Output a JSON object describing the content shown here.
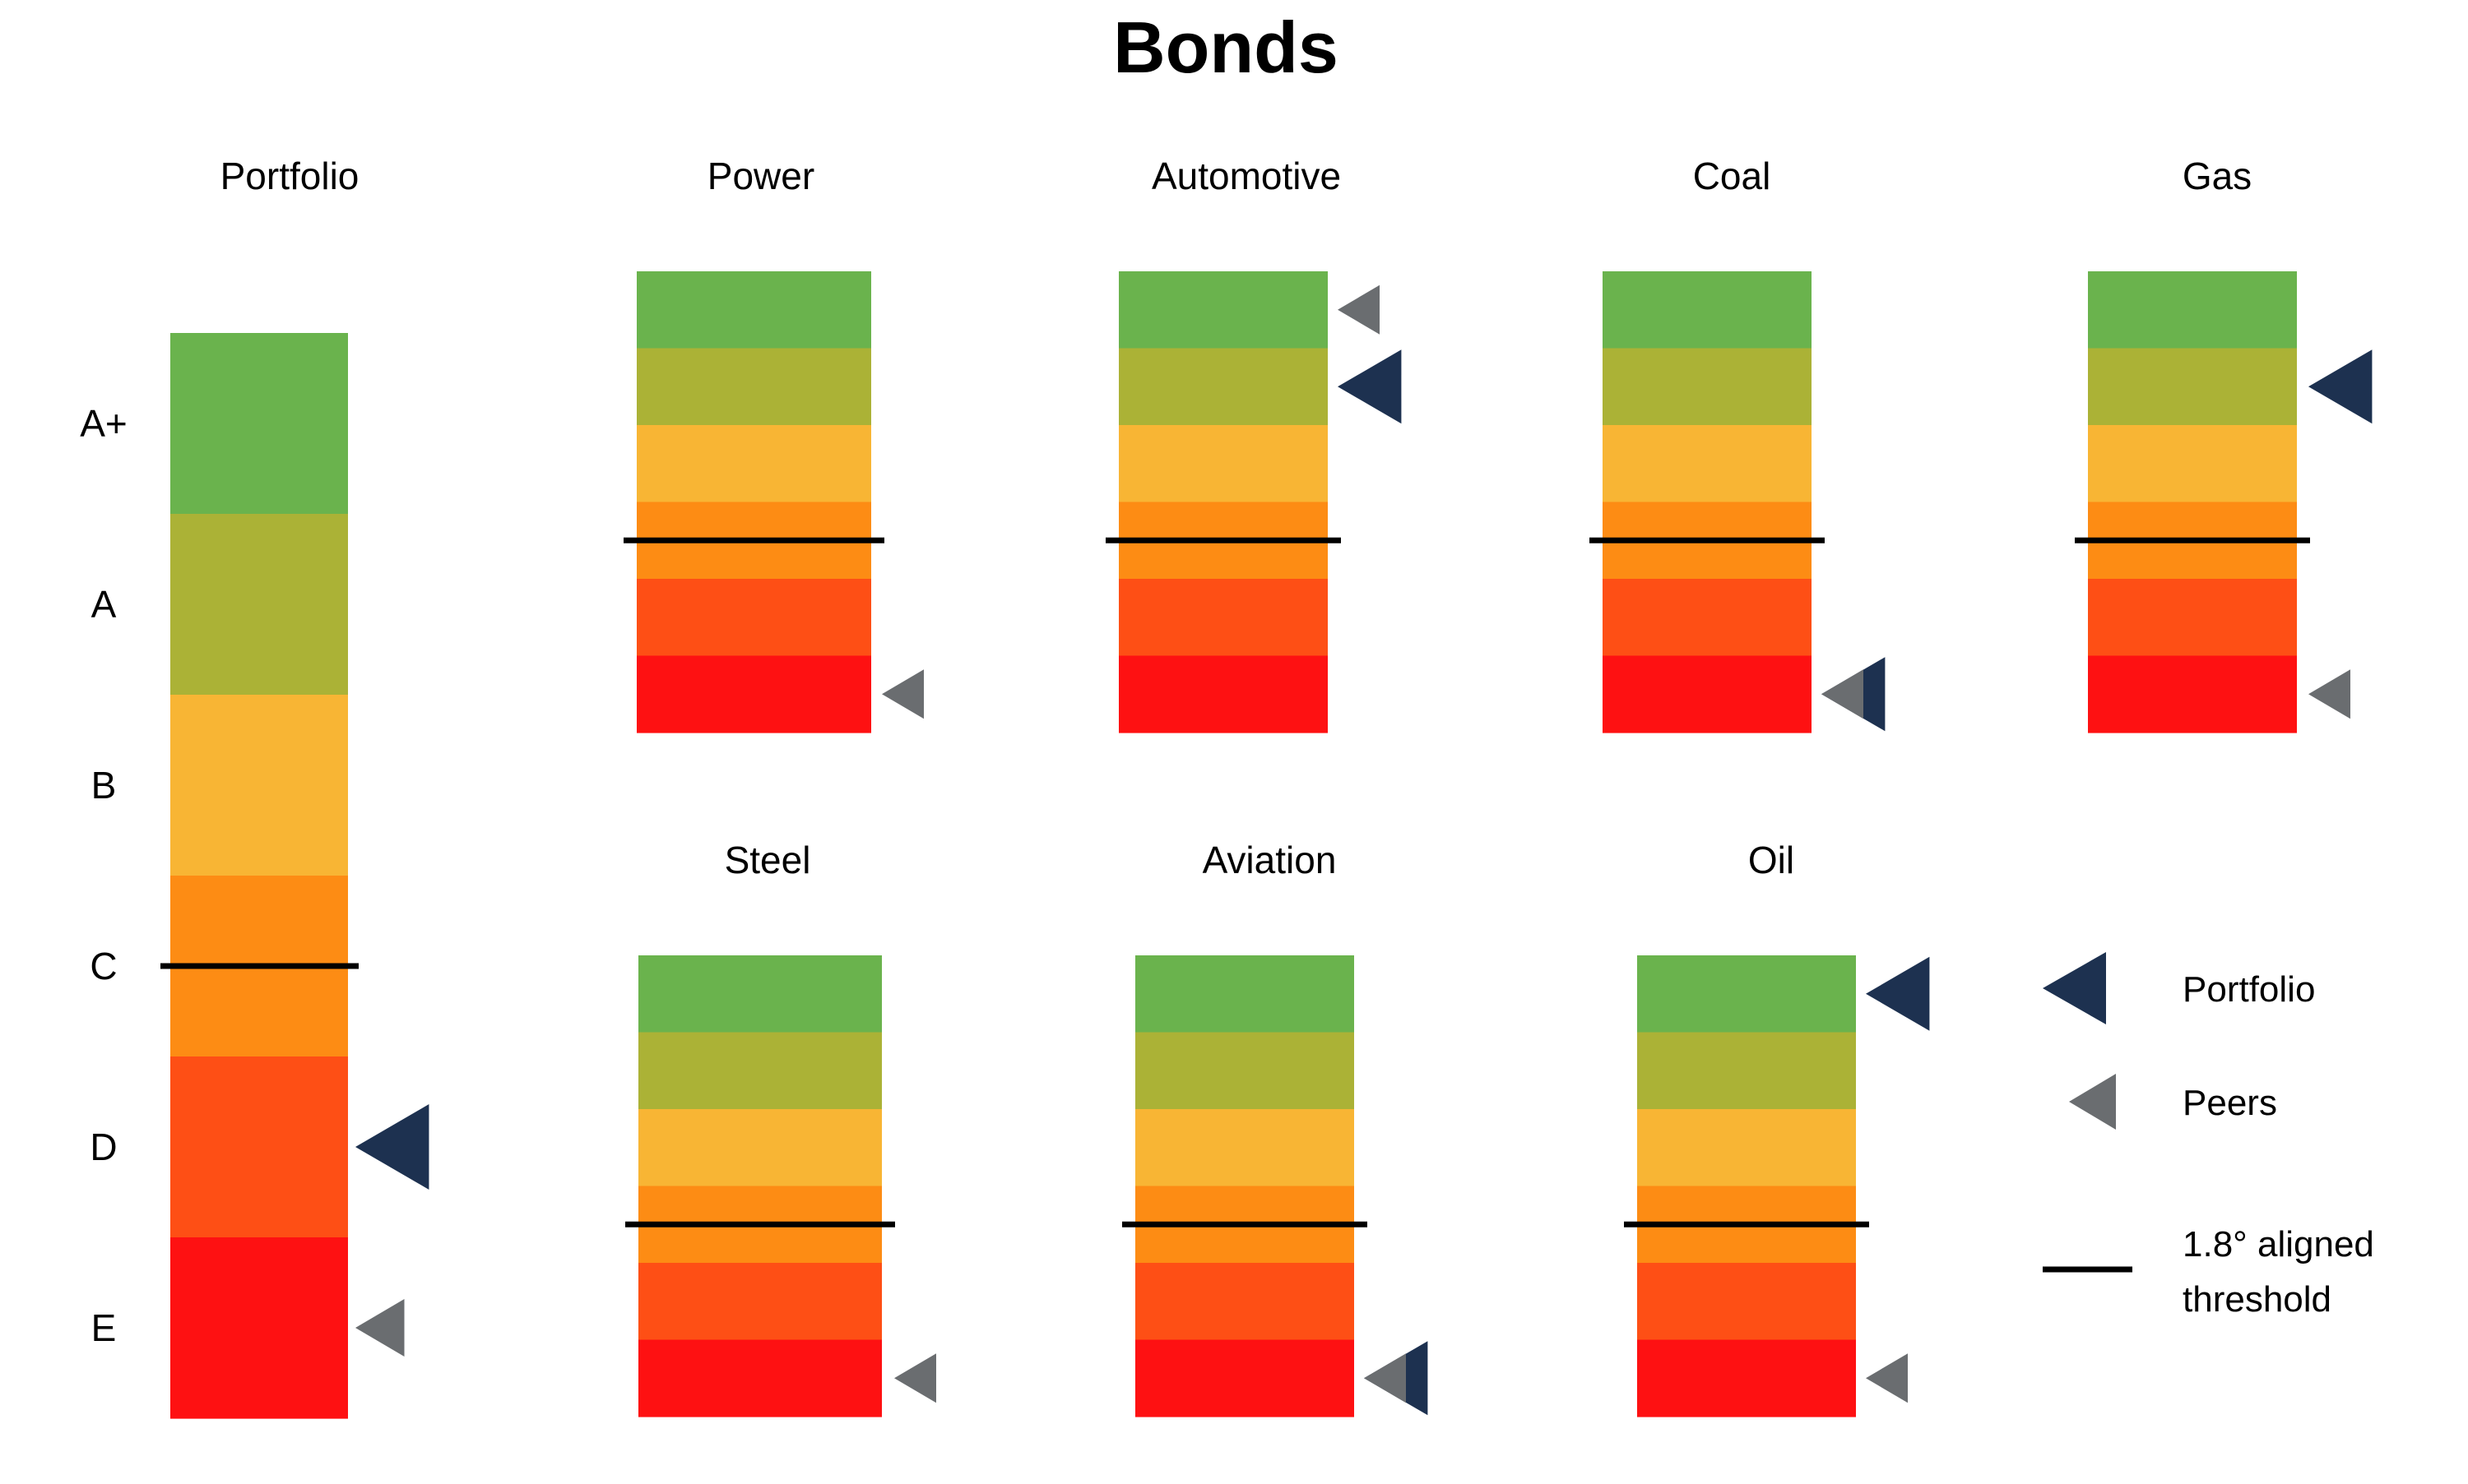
{
  "chart_data": {
    "type": "bar",
    "title": "Bonds",
    "rating_scale": [
      "A+",
      "A",
      "B",
      "C",
      "D",
      "E"
    ],
    "band_colors": {
      "A+": "#6ab34d",
      "A": "#abb236",
      "B": "#f8b534",
      "C": "#fd8c14",
      "D": "#fe4f15",
      "E": "#fe1112"
    },
    "marker_colors": {
      "portfolio": "#1d3150",
      "peers": "#6a6d70",
      "threshold": "#000000"
    },
    "panels": [
      {
        "name": "Portfolio",
        "portfolio": "D",
        "peers": "E",
        "threshold": "C"
      },
      {
        "name": "Power",
        "portfolio": null,
        "peers": "E",
        "threshold": "C"
      },
      {
        "name": "Automotive",
        "portfolio": "A",
        "peers": "A+",
        "threshold": "C"
      },
      {
        "name": "Coal",
        "portfolio": "E",
        "peers": "E",
        "threshold": "C"
      },
      {
        "name": "Gas",
        "portfolio": "A",
        "peers": "E",
        "threshold": "C"
      },
      {
        "name": "Steel",
        "portfolio": null,
        "peers": "E",
        "threshold": "C"
      },
      {
        "name": "Aviation",
        "portfolio": "E",
        "peers": "E",
        "threshold": "C"
      },
      {
        "name": "Oil",
        "portfolio": "A+",
        "peers": "E",
        "threshold": "C"
      }
    ],
    "legend": {
      "portfolio_label": "Portfolio",
      "peers_label": "Peers",
      "threshold_label_line1": "1.8° aligned",
      "threshold_label_line2": "threshold"
    }
  }
}
